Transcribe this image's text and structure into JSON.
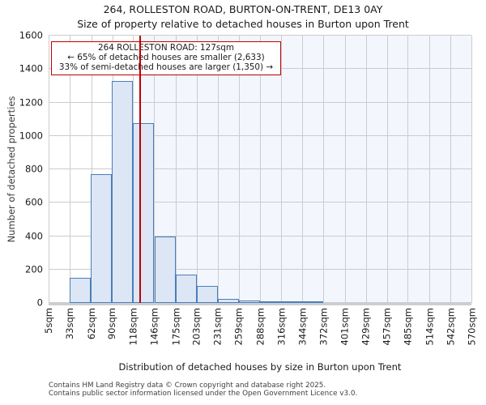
{
  "title": "264, ROLLESTON ROAD, BURTON-ON-TRENT, DE13 0AY",
  "subtitle": "Size of property relative to detached houses in Burton upon Trent",
  "annotation": {
    "lines": [
      "264 ROLLESTON ROAD: 127sqm",
      "← 65% of detached houses are smaller (2,633)",
      "33% of semi-detached houses are larger (1,350) →"
    ]
  },
  "chart_data": {
    "type": "bar",
    "title": "Size of property relative to detached houses in Burton upon Trent",
    "xlabel": "Distribution of detached houses by size in Burton upon Trent",
    "ylabel": "Number of detached properties",
    "bin_edges_sqm": [
      5,
      33,
      62,
      90,
      118,
      146,
      175,
      203,
      231,
      259,
      288,
      316,
      344,
      372,
      401,
      429,
      457,
      485,
      514,
      542,
      570
    ],
    "x_tick_labels": [
      "5sqm",
      "33sqm",
      "62sqm",
      "90sqm",
      "118sqm",
      "146sqm",
      "175sqm",
      "203sqm",
      "231sqm",
      "259sqm",
      "288sqm",
      "316sqm",
      "344sqm",
      "372sqm",
      "401sqm",
      "429sqm",
      "457sqm",
      "485sqm",
      "514sqm",
      "542sqm",
      "570sqm"
    ],
    "values": [
      0,
      150,
      770,
      1330,
      1075,
      400,
      170,
      100,
      25,
      15,
      6,
      4,
      2,
      0,
      0,
      0,
      0,
      0,
      0,
      0
    ],
    "y_ticks": [
      0,
      200,
      400,
      600,
      800,
      1000,
      1200,
      1400,
      1600
    ],
    "ylim": [
      0,
      1600
    ],
    "grid": true,
    "marker": {
      "label": "264 ROLLESTON ROAD",
      "value_sqm": 127
    },
    "colors": {
      "bar_fill": "#dce6f5",
      "bar_edge": "#4a7ebb",
      "marker_red": "#c00000",
      "shade_right_of_marker": "#f3f6fd",
      "grid": "#cccccc"
    }
  },
  "footer": {
    "line1": "Contains HM Land Registry data © Crown copyright and database right 2025.",
    "line2": "Contains public sector information licensed under the Open Government Licence v3.0."
  }
}
